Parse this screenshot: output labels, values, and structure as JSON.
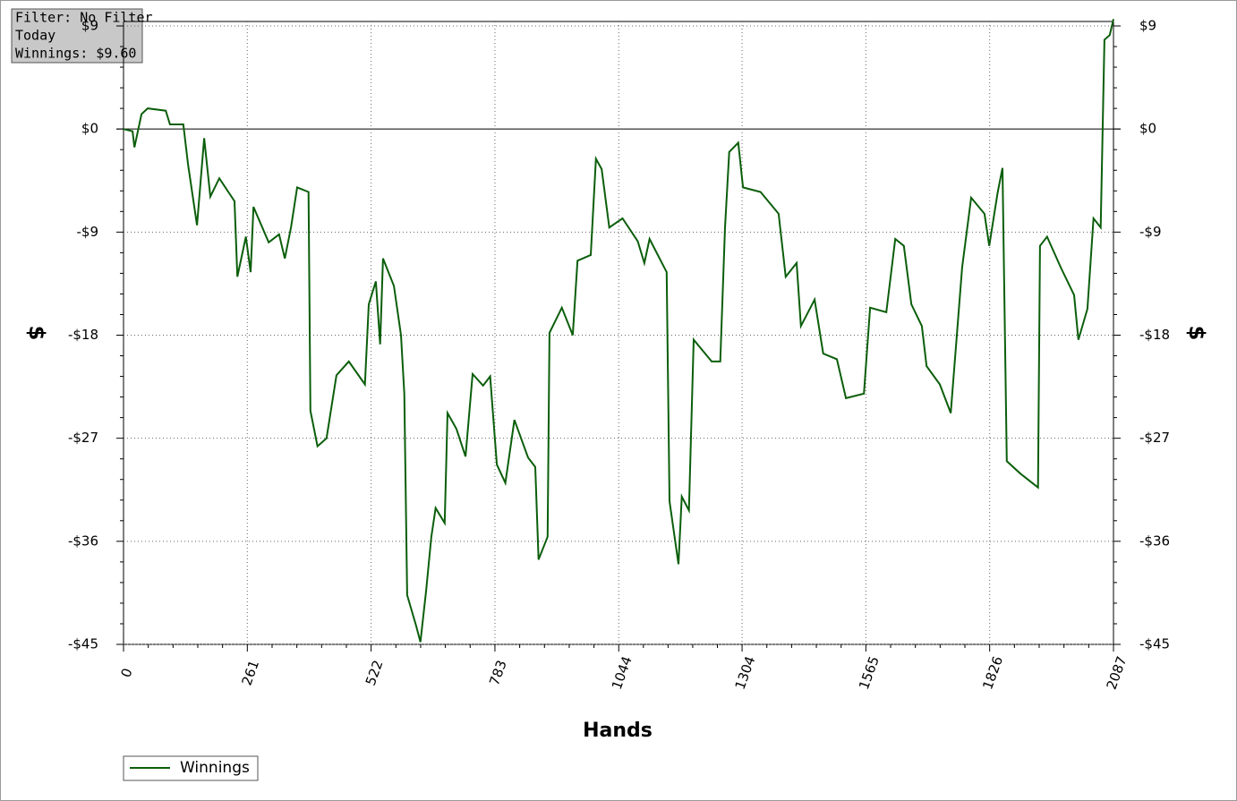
{
  "chart_data": {
    "type": "line",
    "annotations": [
      "Filter: No Filter",
      "Today",
      "Winnings: $9.60"
    ],
    "xlabel": "Hands",
    "ylabel": "$",
    "x": [
      0,
      19,
      23,
      38,
      51,
      89,
      98,
      126,
      136,
      155,
      170,
      183,
      202,
      234,
      240,
      258,
      268,
      274,
      306,
      328,
      340,
      353,
      366,
      390,
      394,
      409,
      428,
      449,
      475,
      509,
      517,
      532,
      541,
      547,
      570,
      585,
      592,
      598,
      617,
      626,
      638,
      649,
      658,
      677,
      683,
      702,
      721,
      736,
      758,
      773,
      787,
      805,
      824,
      853,
      868,
      875,
      894,
      898,
      924,
      947,
      957,
      985,
      996,
      1008,
      1024,
      1052,
      1084,
      1098,
      1109,
      1145,
      1151,
      1170,
      1177,
      1192,
      1202,
      1240,
      1258,
      1268,
      1277,
      1296,
      1306,
      1343,
      1381,
      1396,
      1419,
      1428,
      1457,
      1475,
      1504,
      1523,
      1561,
      1574,
      1608,
      1627,
      1645,
      1661,
      1683,
      1693,
      1721,
      1744,
      1768,
      1787,
      1815,
      1825,
      1843,
      1853,
      1862,
      1891,
      1928,
      1932,
      1947,
      1976,
      2004,
      2013,
      2032,
      2045,
      2060,
      2068,
      2079,
      2087
    ],
    "series": [
      {
        "name": "Winnings",
        "color": "#0b5e0b",
        "values": [
          0,
          -0.2,
          -1.6,
          1.3,
          1.8,
          1.6,
          0.4,
          0.4,
          -3.1,
          -8.4,
          -0.8,
          -5.9,
          -4.3,
          -6.3,
          -12.9,
          -9.4,
          -12.5,
          -6.8,
          -9.9,
          -9.2,
          -11.3,
          -8.6,
          -5.1,
          -5.5,
          -24.6,
          -27.7,
          -27,
          -21.5,
          -20.3,
          -22.3,
          -15.3,
          -13.3,
          -18.8,
          -11.3,
          -13.7,
          -18,
          -23.1,
          -40.7,
          -43.4,
          -44.8,
          -40.3,
          -35.6,
          -33.1,
          -34.4,
          -24.8,
          -26.2,
          -28.6,
          -21.4,
          -22.4,
          -21.6,
          -29.3,
          -30.9,
          -25.4,
          -28.7,
          -29.5,
          -37.6,
          -35.6,
          -17.8,
          -15.6,
          -18,
          -11.5,
          -11,
          -2.6,
          -3.5,
          -8.6,
          -7.8,
          -9.8,
          -11.7,
          -9.6,
          -12.5,
          -32.5,
          -38,
          -32.1,
          -33.3,
          -18.4,
          -20.3,
          -20.3,
          -8.6,
          -2,
          -1.2,
          -5.1,
          -5.5,
          -7.4,
          -12.9,
          -11.7,
          -17.2,
          -14.9,
          -19.6,
          -20.1,
          -23.5,
          -23.1,
          -15.6,
          -16,
          -9.6,
          -10.2,
          -15.3,
          -17.2,
          -20.7,
          -22.3,
          -24.8,
          -12.1,
          -6,
          -7.4,
          -10.2,
          -5.5,
          -3.4,
          -29,
          -30.1,
          -31.3,
          -10.2,
          -9.4,
          -12.1,
          -14.5,
          -18.4,
          -15.7,
          -7.8,
          -8.6,
          7.8,
          8.2,
          9.6
        ]
      }
    ],
    "xlim": [
      0,
      2087
    ],
    "xticks": [
      0,
      261,
      522,
      783,
      1044,
      1304,
      1565,
      1826,
      2087
    ],
    "ylim": [
      -45,
      9
    ],
    "yticks": [
      {
        "value": 9,
        "label": "$9"
      },
      {
        "value": 0,
        "label": "$0"
      },
      {
        "value": -9,
        "label": "-$9"
      },
      {
        "value": -18,
        "label": "-$18"
      },
      {
        "value": -27,
        "label": "-$27"
      },
      {
        "value": -36,
        "label": "-$36"
      },
      {
        "value": -45,
        "label": "-$45"
      }
    ],
    "grid": true
  }
}
